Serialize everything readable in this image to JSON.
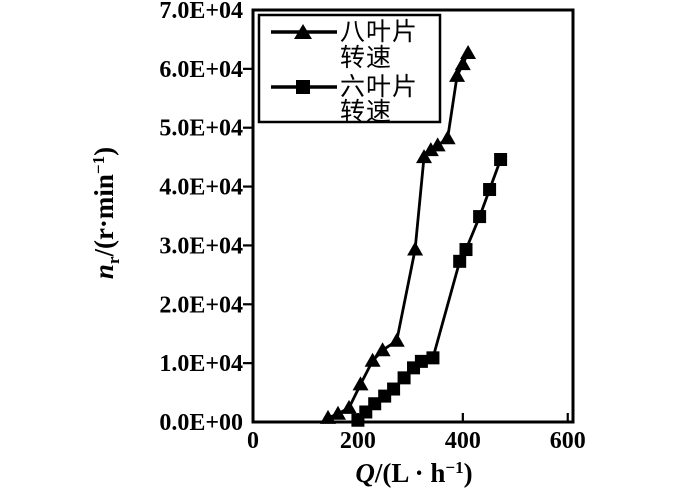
{
  "chart_data": {
    "type": "line",
    "title": "",
    "grid": false,
    "xlabel": {
      "symbol": "Q",
      "rest": "/(L · h",
      "exp": "−1",
      "close": ")"
    },
    "ylabel": {
      "symbol": "n",
      "sub": "r",
      "rest": "/(r·min",
      "exp": "−1",
      "close": ")"
    },
    "xlim": [
      0,
      610
    ],
    "ylim": [
      0,
      70000
    ],
    "xticks": {
      "values": [
        0,
        200,
        400,
        600
      ],
      "labels": [
        "0",
        "200",
        "400",
        "600"
      ]
    },
    "yticks": {
      "values": [
        0,
        10000,
        20000,
        30000,
        40000,
        50000,
        60000,
        70000
      ],
      "labels": [
        "0.0E+00",
        "1.0E+04",
        "2.0E+04",
        "3.0E+04",
        "4.0E+04",
        "5.0E+04",
        "6.0E+04",
        "7.0E+04"
      ]
    },
    "legend": {
      "position": "top-left",
      "entries": [
        {
          "marker": "triangle",
          "label_line1": "八叶片",
          "label_line2": "转速",
          "name": "八叶片转速"
        },
        {
          "marker": "square",
          "label_line1": "六叶片",
          "label_line2": "转速",
          "name": "六叶片转速"
        }
      ]
    },
    "series": [
      {
        "name": "八叶片转速",
        "marker": "triangle",
        "x": [
          143,
          162,
          183,
          205,
          228,
          247,
          274,
          309,
          326,
          339,
          352,
          371,
          389,
          400,
          410
        ],
        "y": [
          700,
          1400,
          2400,
          6400,
          10400,
          12200,
          13800,
          29300,
          45000,
          46200,
          47000,
          48200,
          58800,
          60800,
          62700
        ]
      },
      {
        "name": "六叶片转速",
        "marker": "square",
        "x": [
          200,
          215,
          232,
          251,
          268,
          288,
          306,
          321,
          343,
          394,
          406,
          432,
          451,
          472
        ],
        "y": [
          300,
          1700,
          3100,
          4400,
          5600,
          7500,
          9200,
          10300,
          10900,
          27300,
          29300,
          34900,
          39500,
          44600
        ]
      }
    ]
  }
}
